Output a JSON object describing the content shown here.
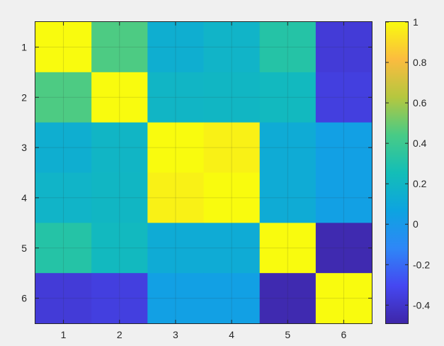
{
  "chart_data": {
    "type": "heatmap",
    "x": [
      "1",
      "2",
      "3",
      "4",
      "5",
      "6"
    ],
    "y": [
      "1",
      "2",
      "3",
      "4",
      "5",
      "6"
    ],
    "values": [
      [
        1.0,
        0.45,
        0.14,
        0.18,
        0.32,
        -0.37
      ],
      [
        0.45,
        1.0,
        0.19,
        0.2,
        0.22,
        -0.35
      ],
      [
        0.14,
        0.19,
        1.0,
        0.97,
        0.12,
        0.04
      ],
      [
        0.18,
        0.2,
        0.97,
        1.0,
        0.12,
        0.04
      ],
      [
        0.32,
        0.22,
        0.12,
        0.12,
        1.0,
        -0.47
      ],
      [
        -0.37,
        -0.35,
        0.04,
        0.04,
        -0.47,
        1.0
      ]
    ],
    "colorbar": {
      "range": [
        -0.49,
        1.0
      ],
      "ticks": [
        1,
        0.8,
        0.6,
        0.4,
        0.2,
        0,
        -0.2,
        -0.4
      ],
      "tick_labels": [
        "1",
        "0.8",
        "0.6",
        "0.4",
        "0.2",
        "0",
        "-0.2",
        "-0.4"
      ]
    },
    "colormap": "parula",
    "grid": true,
    "legend": "colorbar-right"
  }
}
